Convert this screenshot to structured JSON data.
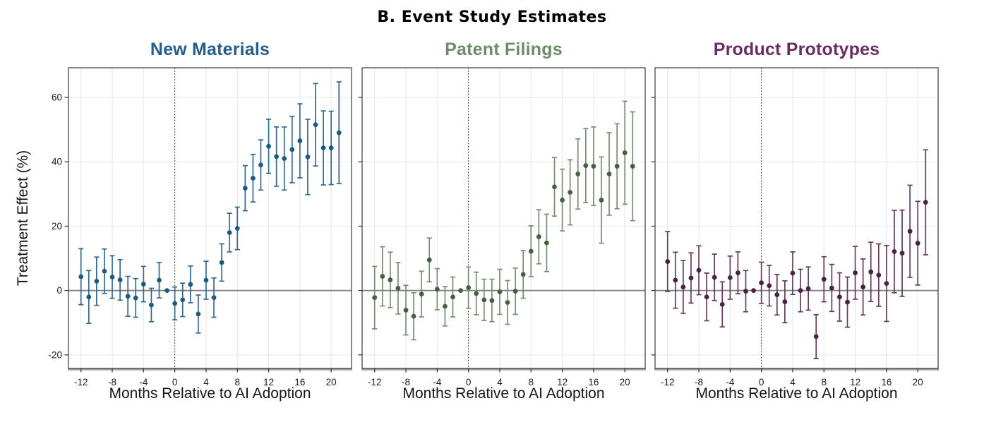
{
  "figure": {
    "title": "B. Event Study Estimates",
    "y_axis_label": "Treatment Effect (%)",
    "x_axis_label": "Months Relative to AI Adoption"
  },
  "axes": {
    "x_ticks": [
      -12,
      -8,
      -4,
      0,
      4,
      8,
      12,
      16,
      20
    ],
    "y_ticks": [
      60,
      40,
      20,
      0,
      -20
    ],
    "xlim": [
      -13.6,
      22.6
    ],
    "ylim": [
      -24.2,
      69.2
    ],
    "grid": true,
    "zero_line": true,
    "event_line_x": 0,
    "reference_month": -1
  },
  "chart_data": [
    {
      "type": "scatter",
      "title": "New Materials",
      "ylabel": "Treatment Effect (%)",
      "xlabel": "Months Relative to AI Adoption",
      "point_color": "#1d5a82",
      "bar_color": "#35688f",
      "title_color": "#265d8c",
      "x": [
        -12,
        -11,
        -10,
        -9,
        -8,
        -7,
        -6,
        -5,
        -4,
        -3,
        -2,
        -1,
        0,
        1,
        2,
        3,
        4,
        5,
        6,
        7,
        8,
        9,
        10,
        11,
        12,
        13,
        14,
        15,
        16,
        17,
        18,
        19,
        20,
        21
      ],
      "y": [
        4.3,
        -2.0,
        2.9,
        6.0,
        4.2,
        3.3,
        -1.8,
        -2.3,
        2.0,
        -4.5,
        3.2,
        0.0,
        -4.0,
        -2.9,
        1.9,
        -7.3,
        3.2,
        -2.2,
        8.7,
        18.0,
        19.3,
        31.8,
        34.9,
        39.0,
        44.8,
        41.6,
        41.0,
        43.8,
        46.5,
        41.5,
        51.5,
        44.3,
        44.3,
        49.0
      ],
      "lo": [
        -4.4,
        -10.2,
        -4.6,
        -0.9,
        -2.4,
        -3.0,
        -8.0,
        -8.3,
        -3.5,
        -9.7,
        -2.3,
        0.0,
        -9.1,
        -8.1,
        -3.8,
        -13.2,
        -2.7,
        -8.3,
        2.9,
        12.0,
        12.7,
        24.8,
        27.5,
        31.2,
        36.4,
        32.4,
        31.2,
        33.5,
        35.0,
        29.8,
        38.7,
        32.8,
        32.9,
        33.2
      ],
      "hi": [
        13.0,
        6.2,
        10.4,
        12.9,
        10.8,
        9.6,
        4.4,
        3.7,
        7.5,
        0.7,
        8.7,
        0.0,
        1.1,
        2.3,
        7.6,
        -1.4,
        9.1,
        3.9,
        14.5,
        24.0,
        25.9,
        38.8,
        42.3,
        46.8,
        53.2,
        50.8,
        50.8,
        54.1,
        58.0,
        53.2,
        64.3,
        55.8,
        55.7,
        64.8
      ]
    },
    {
      "type": "scatter",
      "title": "Patent Filings",
      "ylabel": "Treatment Effect (%)",
      "xlabel": "Months Relative to AI Adoption",
      "point_color": "#44603f",
      "bar_color": "#778d74",
      "title_color": "#6d8c68",
      "x": [
        -12,
        -11,
        -10,
        -9,
        -8,
        -7,
        -6,
        -5,
        -4,
        -3,
        -2,
        -1,
        0,
        1,
        2,
        3,
        4,
        5,
        6,
        7,
        8,
        9,
        10,
        11,
        12,
        13,
        14,
        15,
        16,
        17,
        18,
        19,
        20,
        21
      ],
      "y": [
        -2.2,
        4.4,
        3.3,
        0.7,
        -6.1,
        -8.0,
        -1.1,
        9.5,
        0.4,
        -4.9,
        -2.0,
        0.0,
        0.9,
        -0.9,
        -2.9,
        -3.1,
        -0.4,
        -3.7,
        -0.2,
        5.0,
        12.2,
        16.7,
        14.8,
        32.2,
        28.1,
        30.5,
        36.2,
        38.8,
        38.6,
        28.1,
        36.2,
        38.6,
        42.8,
        38.6
      ],
      "lo": [
        -11.9,
        -4.8,
        -5.3,
        -7.3,
        -13.8,
        -15.3,
        -8.2,
        2.7,
        -6.0,
        -11.0,
        -8.2,
        0.0,
        -5.5,
        -7.5,
        -9.3,
        -9.7,
        -7.4,
        -10.5,
        -7.4,
        -2.4,
        4.3,
        8.3,
        5.9,
        23.1,
        18.5,
        20.4,
        25.3,
        27.3,
        26.4,
        14.7,
        23.4,
        25.4,
        26.8,
        21.7
      ],
      "hi": [
        7.5,
        13.6,
        11.9,
        8.7,
        1.6,
        -0.7,
        6.0,
        16.3,
        6.8,
        1.2,
        4.2,
        0.0,
        7.3,
        5.7,
        3.5,
        3.5,
        6.6,
        3.1,
        7.0,
        12.4,
        20.1,
        25.1,
        23.7,
        41.3,
        37.7,
        40.6,
        47.1,
        50.3,
        50.8,
        41.5,
        49.0,
        51.8,
        58.8,
        55.5
      ]
    },
    {
      "type": "scatter",
      "title": "Product Prototypes",
      "ylabel": "Treatment Effect (%)",
      "xlabel": "Months Relative to AI Adoption",
      "point_color": "#4b2145",
      "bar_color": "#653a5c",
      "title_color": "#692d62",
      "x": [
        -12,
        -11,
        -10,
        -9,
        -8,
        -7,
        -6,
        -5,
        -4,
        -3,
        -2,
        -1,
        0,
        1,
        2,
        3,
        4,
        5,
        6,
        7,
        8,
        9,
        10,
        11,
        12,
        13,
        14,
        15,
        16,
        17,
        18,
        19,
        20,
        21
      ],
      "y": [
        9.0,
        3.2,
        1.1,
        3.9,
        6.3,
        -2.0,
        4.1,
        -4.3,
        4.0,
        5.5,
        -0.2,
        0.0,
        2.4,
        1.5,
        -1.3,
        -3.5,
        5.4,
        0.0,
        0.6,
        -14.3,
        3.5,
        0.8,
        -2.0,
        -3.6,
        5.5,
        1.1,
        5.8,
        4.8,
        2.2,
        12.1,
        11.6,
        18.4,
        14.7,
        27.4
      ],
      "lo": [
        -0.3,
        -5.5,
        -7.1,
        -3.9,
        -1.3,
        -9.4,
        -3.1,
        -11.3,
        -2.7,
        -1.0,
        -6.6,
        0.0,
        -4.0,
        -4.8,
        -7.6,
        -10.0,
        -1.2,
        -6.6,
        -6.1,
        -21.1,
        -3.5,
        -6.5,
        -9.5,
        -11.4,
        -2.7,
        -7.6,
        -3.4,
        -4.9,
        -9.6,
        -0.7,
        -1.8,
        4.1,
        1.7,
        11.1
      ],
      "hi": [
        18.3,
        11.9,
        9.3,
        11.7,
        13.9,
        5.4,
        11.3,
        2.7,
        10.7,
        12.0,
        6.2,
        0.0,
        8.8,
        7.8,
        5.0,
        3.0,
        12.0,
        6.6,
        7.3,
        -7.5,
        10.5,
        8.1,
        5.5,
        4.2,
        13.7,
        9.8,
        15.0,
        14.5,
        14.0,
        24.9,
        25.0,
        32.7,
        27.7,
        43.7
      ]
    }
  ]
}
